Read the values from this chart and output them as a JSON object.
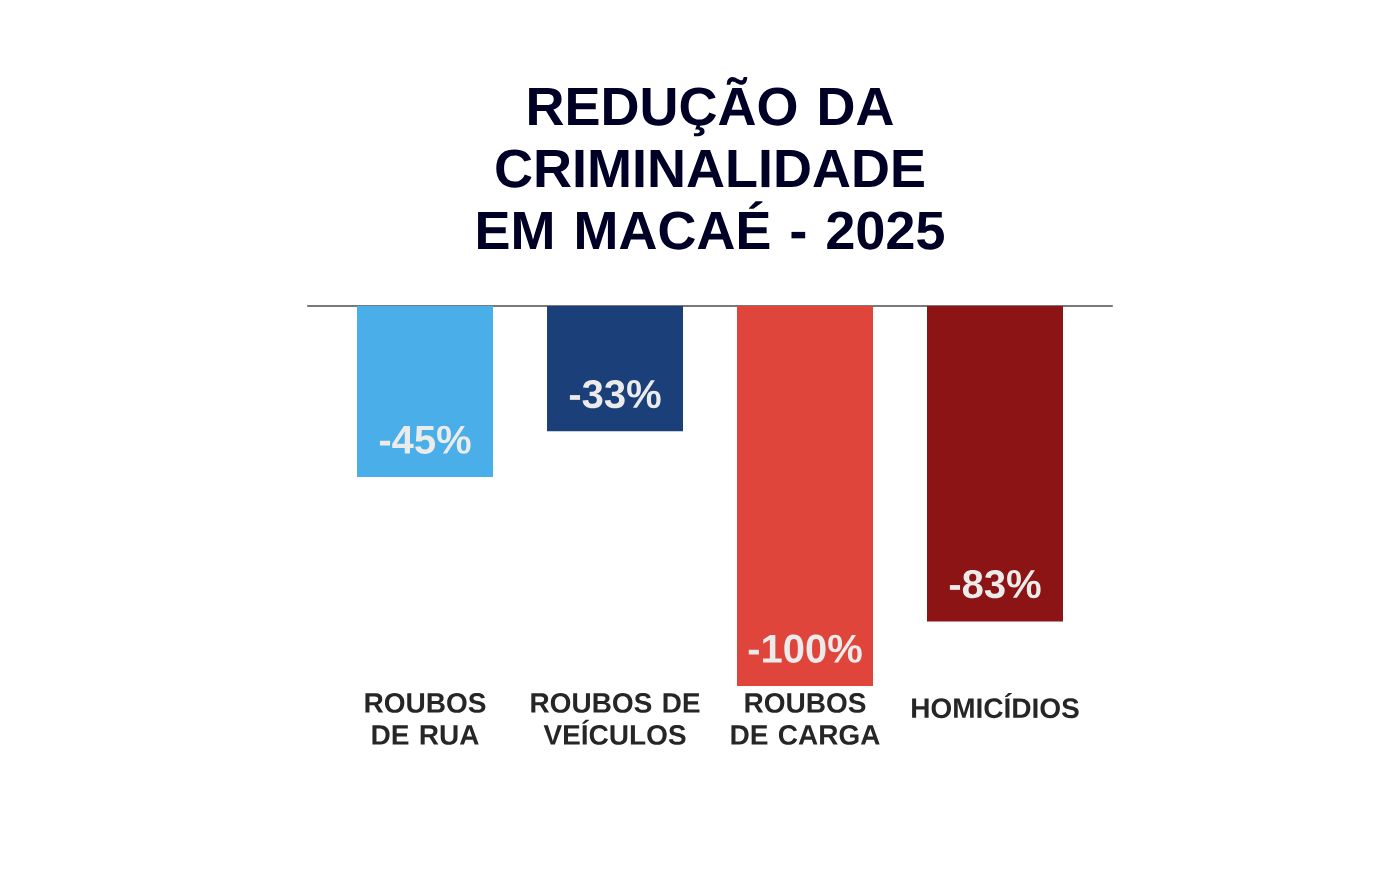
{
  "chart_data": {
    "type": "bar",
    "title": "REDUÇÃO DA CRIMINALIDADE EM MACAÉ - 2025",
    "categories": [
      "ROUBOS DE RUA",
      "ROUBOS DE VEÍCULOS",
      "ROUBOS DE CARGA",
      "HOMICÍDIOS"
    ],
    "values": [
      -45,
      -33,
      -100,
      -83
    ],
    "value_labels": [
      "-45%",
      "-33%",
      "-100%",
      "-83%"
    ],
    "colors": [
      "#4aaee8",
      "#1b3f78",
      "#e0453b",
      "#8c1414"
    ],
    "ylim": [
      -100,
      0
    ],
    "tick_labels": "x"
  }
}
